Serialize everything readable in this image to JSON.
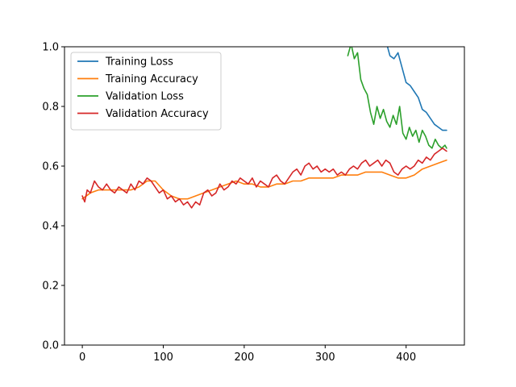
{
  "chart_data": {
    "type": "line",
    "title": "",
    "xlabel": "",
    "ylabel": "",
    "xlim": [
      -22,
      472
    ],
    "ylim": [
      0,
      1
    ],
    "grid": false,
    "legend_position": "upper-left",
    "x_ticks": [
      0,
      100,
      200,
      300,
      400
    ],
    "y_ticks": [
      0.0,
      0.2,
      0.4,
      0.6,
      0.8,
      1.0
    ],
    "x_tick_labels": [
      "0",
      "100",
      "200",
      "300",
      "400"
    ],
    "y_tick_labels": [
      "0.0",
      "0.2",
      "0.4",
      "0.6",
      "0.8",
      "1.0"
    ],
    "series": [
      {
        "name": "Training Loss",
        "color": "#1f77b4",
        "x": [
          375,
          380,
          385,
          390,
          395,
          400,
          405,
          410,
          415,
          420,
          425,
          430,
          435,
          440,
          445,
          450
        ],
        "values": [
          1.02,
          0.97,
          0.96,
          0.98,
          0.93,
          0.88,
          0.87,
          0.85,
          0.83,
          0.79,
          0.78,
          0.76,
          0.74,
          0.73,
          0.72,
          0.72
        ]
      },
      {
        "name": "Training Accuracy",
        "color": "#ff7f0e",
        "x": [
          0,
          10,
          20,
          30,
          40,
          50,
          60,
          70,
          80,
          90,
          100,
          110,
          120,
          130,
          140,
          150,
          160,
          170,
          180,
          190,
          200,
          210,
          220,
          230,
          240,
          250,
          260,
          270,
          280,
          290,
          300,
          310,
          320,
          330,
          340,
          350,
          360,
          370,
          380,
          390,
          400,
          410,
          420,
          430,
          440,
          450
        ],
        "values": [
          0.49,
          0.51,
          0.52,
          0.52,
          0.52,
          0.52,
          0.52,
          0.53,
          0.55,
          0.55,
          0.52,
          0.5,
          0.49,
          0.49,
          0.5,
          0.51,
          0.52,
          0.53,
          0.54,
          0.55,
          0.54,
          0.54,
          0.53,
          0.53,
          0.54,
          0.54,
          0.55,
          0.55,
          0.56,
          0.56,
          0.56,
          0.56,
          0.57,
          0.57,
          0.57,
          0.58,
          0.58,
          0.58,
          0.57,
          0.56,
          0.56,
          0.57,
          0.59,
          0.6,
          0.61,
          0.62
        ]
      },
      {
        "name": "Validation Loss",
        "color": "#2ca02c",
        "x": [
          328,
          332,
          336,
          340,
          344,
          348,
          352,
          356,
          360,
          364,
          368,
          372,
          376,
          380,
          384,
          388,
          392,
          396,
          400,
          404,
          408,
          412,
          416,
          420,
          424,
          428,
          432,
          436,
          440,
          444,
          448,
          450
        ],
        "values": [
          0.97,
          1.01,
          0.96,
          0.98,
          0.89,
          0.86,
          0.84,
          0.78,
          0.74,
          0.8,
          0.76,
          0.79,
          0.75,
          0.73,
          0.77,
          0.74,
          0.8,
          0.71,
          0.69,
          0.73,
          0.7,
          0.72,
          0.68,
          0.72,
          0.7,
          0.67,
          0.66,
          0.69,
          0.67,
          0.66,
          0.67,
          0.66
        ]
      },
      {
        "name": "Validation Accuracy",
        "color": "#d62728",
        "x": [
          0,
          3,
          6,
          10,
          15,
          20,
          25,
          30,
          35,
          40,
          45,
          50,
          55,
          60,
          65,
          70,
          75,
          80,
          85,
          90,
          95,
          100,
          105,
          110,
          115,
          120,
          125,
          130,
          135,
          140,
          145,
          150,
          155,
          160,
          165,
          170,
          175,
          180,
          185,
          190,
          195,
          200,
          205,
          210,
          215,
          220,
          225,
          230,
          235,
          240,
          245,
          250,
          255,
          260,
          265,
          270,
          275,
          280,
          285,
          290,
          295,
          300,
          305,
          310,
          315,
          320,
          325,
          330,
          335,
          340,
          345,
          350,
          355,
          360,
          365,
          370,
          375,
          380,
          385,
          390,
          395,
          400,
          405,
          410,
          415,
          420,
          425,
          430,
          435,
          440,
          445,
          450
        ],
        "values": [
          0.5,
          0.48,
          0.52,
          0.51,
          0.55,
          0.53,
          0.52,
          0.54,
          0.52,
          0.51,
          0.53,
          0.52,
          0.51,
          0.54,
          0.52,
          0.55,
          0.54,
          0.56,
          0.55,
          0.53,
          0.51,
          0.52,
          0.49,
          0.5,
          0.48,
          0.49,
          0.47,
          0.48,
          0.46,
          0.48,
          0.47,
          0.51,
          0.52,
          0.5,
          0.51,
          0.54,
          0.52,
          0.53,
          0.55,
          0.54,
          0.56,
          0.55,
          0.54,
          0.56,
          0.53,
          0.55,
          0.54,
          0.53,
          0.56,
          0.57,
          0.55,
          0.54,
          0.56,
          0.58,
          0.59,
          0.57,
          0.6,
          0.61,
          0.59,
          0.6,
          0.58,
          0.59,
          0.58,
          0.59,
          0.57,
          0.58,
          0.57,
          0.59,
          0.6,
          0.59,
          0.61,
          0.62,
          0.6,
          0.61,
          0.62,
          0.6,
          0.62,
          0.61,
          0.58,
          0.57,
          0.59,
          0.6,
          0.59,
          0.6,
          0.62,
          0.61,
          0.63,
          0.62,
          0.64,
          0.65,
          0.66,
          0.65
        ]
      }
    ]
  }
}
